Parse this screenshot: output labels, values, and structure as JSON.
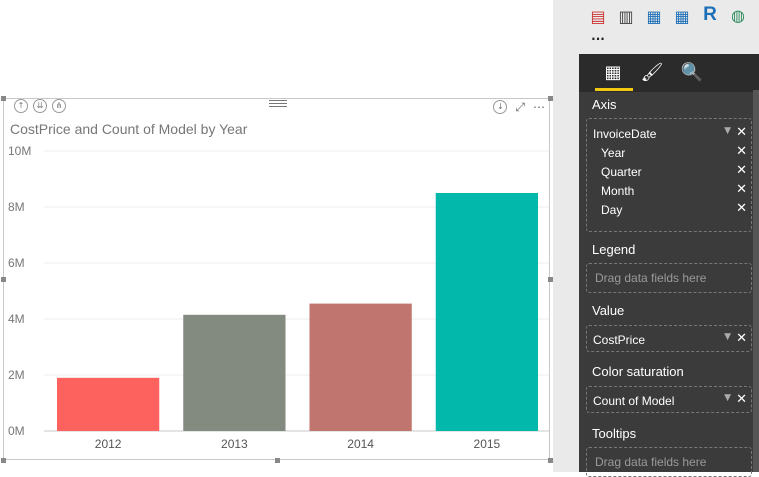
{
  "visual": {
    "title": "CostPrice and Count of Model by Year",
    "header_left_icons": [
      "drill-up-icon",
      "drill-down-all-icon",
      "expand-all-icon"
    ],
    "header_right_icons": [
      "drill-mode-icon",
      "focus-mode-icon",
      "more-options-icon"
    ],
    "more_options_glyph": "⋯"
  },
  "chart_data": {
    "type": "bar",
    "title": "CostPrice and Count of Model by Year",
    "categories": [
      "2012",
      "2013",
      "2014",
      "2015"
    ],
    "values": [
      1900000,
      4150000,
      4550000,
      8500000
    ],
    "colors": [
      "#fd625e",
      "#838b80",
      "#c0756f",
      "#01b8aa"
    ],
    "yticks": [
      "0M",
      "2M",
      "4M",
      "6M",
      "8M",
      "10M"
    ],
    "ylim": [
      0,
      10000000
    ],
    "grid": true
  },
  "pane": {
    "more_glyph": "···",
    "r_icon": "R",
    "sections": {
      "axis": {
        "label": "Axis",
        "field": "InvoiceDate",
        "sub_fields": [
          "Year",
          "Quarter",
          "Month",
          "Day"
        ]
      },
      "legend": {
        "label": "Legend",
        "placeholder": "Drag data fields here"
      },
      "value": {
        "label": "Value",
        "field": "CostPrice"
      },
      "color_saturation": {
        "label": "Color saturation",
        "field": "Count of Model"
      },
      "tooltips": {
        "label": "Tooltips",
        "placeholder": "Drag data fields here"
      }
    },
    "remove_glyph": "✕",
    "caret_glyph": "▼"
  },
  "colors": {
    "accent": "#f2c811",
    "pane_bg": "#3b3b3b"
  }
}
